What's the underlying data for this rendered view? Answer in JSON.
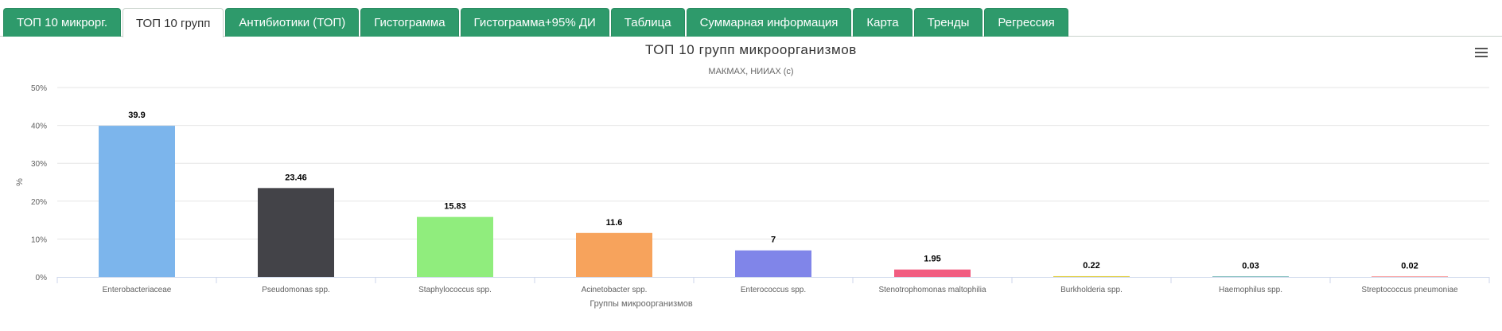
{
  "tabs": [
    {
      "label": "ТОП 10 микрорг.",
      "active": false
    },
    {
      "label": "ТОП 10 групп",
      "active": true
    },
    {
      "label": "Антибиотики (ТОП)",
      "active": false
    },
    {
      "label": "Гистограмма",
      "active": false
    },
    {
      "label": "Гистограмма+95% ДИ",
      "active": false
    },
    {
      "label": "Таблица",
      "active": false
    },
    {
      "label": "Суммарная информация",
      "active": false
    },
    {
      "label": "Карта",
      "active": false
    },
    {
      "label": "Тренды",
      "active": false
    },
    {
      "label": "Регрессия",
      "active": false
    }
  ],
  "chart_data": {
    "type": "bar",
    "title": "ТОП 10 групп микроорганизмов",
    "subtitle": "МАКМАХ, НИИАХ (с)",
    "xlabel": "Группы микроорганизмов",
    "ylabel": "%",
    "ylim": [
      0,
      50
    ],
    "yticks": [
      0,
      10,
      20,
      30,
      40,
      50
    ],
    "ytick_labels": [
      "0%",
      "10%",
      "20%",
      "30%",
      "40%",
      "50%"
    ],
    "grid": true,
    "legend": "none",
    "categories": [
      "Enterobacteriaceae",
      "Pseudomonas spp.",
      "Staphylococcus spp.",
      "Acinetobacter spp.",
      "Enterococcus spp.",
      "Stenotrophomonas maltophilia",
      "Burkholderia spp.",
      "Haemophilus spp.",
      "Streptococcus pneumoniae"
    ],
    "values": [
      39.9,
      23.46,
      15.83,
      11.6,
      7,
      1.95,
      0.22,
      0.03,
      0.02
    ],
    "data_labels": [
      "39.9",
      "23.46",
      "15.83",
      "11.6",
      "7",
      "1.95",
      "0.22",
      "0.03",
      "0.02"
    ],
    "colors": [
      "#7cb5ec",
      "#434348",
      "#90ed7d",
      "#f7a35c",
      "#8085e9",
      "#f15c80",
      "#e4d354",
      "#2b908f",
      "#f45b5b"
    ]
  }
}
